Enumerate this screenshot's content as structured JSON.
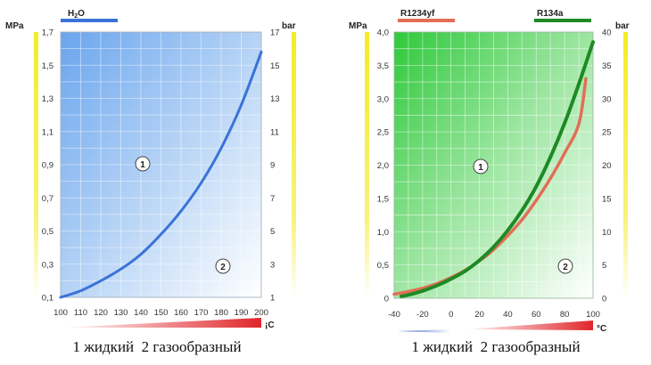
{
  "colors": {
    "h2o_line": "#3a73d9",
    "r1234yf_line": "#e36e57",
    "r134a_line": "#1e8a25",
    "side_bar_yellow": "#f4ec25"
  },
  "chart_data": [
    {
      "type": "line",
      "series": [
        {
          "name": "H2O",
          "x": [
            100,
            110,
            120,
            130,
            140,
            150,
            160,
            170,
            180,
            190,
            200
          ],
          "values": [
            0.1,
            0.14,
            0.2,
            0.27,
            0.36,
            0.48,
            0.62,
            0.79,
            1.0,
            1.26,
            1.58
          ]
        }
      ],
      "title": "",
      "xlabel": "",
      "x_unit": "¡C",
      "ylabel_left": "MPa",
      "ylabel_right": "bar",
      "xlim": [
        100,
        200
      ],
      "ylim": [
        0.1,
        1.7
      ],
      "y2lim": [
        1,
        17
      ],
      "xticks": [
        "100",
        "110",
        "120",
        "130",
        "140",
        "150",
        "160",
        "170",
        "180",
        "190",
        "200"
      ],
      "yticks": [
        "0,1",
        "0,3",
        "0,5",
        "0,7",
        "0,9",
        "1,1",
        "1,3",
        "1,5",
        "1,7"
      ],
      "y2ticks": [
        "1",
        "3",
        "5",
        "7",
        "9",
        "11",
        "13",
        "15",
        "17"
      ],
      "region_labels": [
        "1",
        "2"
      ],
      "grid": true,
      "caption": "1 жидкий  2 газообразный"
    },
    {
      "type": "line",
      "series": [
        {
          "name": "R1234yf",
          "x": [
            -40,
            -30,
            -20,
            -10,
            0,
            10,
            20,
            30,
            40,
            50,
            60,
            70,
            80,
            90,
            95
          ],
          "values": [
            0.06,
            0.1,
            0.15,
            0.22,
            0.31,
            0.42,
            0.56,
            0.73,
            0.94,
            1.18,
            1.47,
            1.8,
            2.18,
            2.62,
            3.3
          ]
        },
        {
          "name": "R134a",
          "x": [
            -35,
            -30,
            -20,
            -10,
            0,
            10,
            20,
            30,
            40,
            50,
            60,
            70,
            80,
            90,
            100
          ],
          "values": [
            0.03,
            0.05,
            0.11,
            0.19,
            0.29,
            0.41,
            0.57,
            0.77,
            1.02,
            1.32,
            1.68,
            2.12,
            2.63,
            3.22,
            3.85
          ]
        }
      ],
      "title": "",
      "xlabel": "",
      "x_unit": "°C",
      "ylabel_left": "MPa",
      "ylabel_right": "bar",
      "xlim": [
        -40,
        100
      ],
      "ylim": [
        0,
        4
      ],
      "y2lim": [
        0,
        40
      ],
      "xticks": [
        "-40",
        "-20",
        "0",
        "20",
        "40",
        "60",
        "80",
        "100"
      ],
      "yticks": [
        "0",
        "0,5",
        "1,0",
        "1,5",
        "2,0",
        "2,5",
        "3,0",
        "3,5",
        "4,0"
      ],
      "y2ticks": [
        "0",
        "5",
        "10",
        "15",
        "20",
        "25",
        "30",
        "35",
        "40"
      ],
      "region_labels": [
        "1",
        "2"
      ],
      "grid": true,
      "caption": "1 жидкий  2 газообразный"
    }
  ]
}
